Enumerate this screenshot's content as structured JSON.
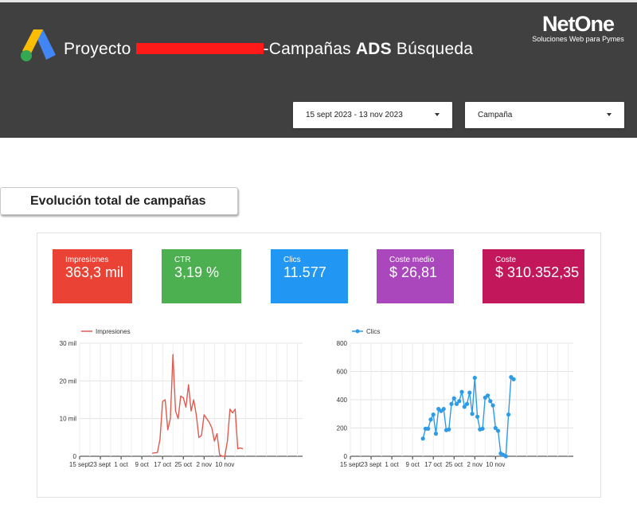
{
  "header": {
    "title_prefix": "Proyecto ",
    "title_suffix_plain": "-Campañas ",
    "title_bold": "ADS",
    "title_tail": " Búsqueda",
    "brand_name": "NetOne",
    "brand_tagline": "Soluciones Web para Pymes",
    "background": "#404040"
  },
  "filters": {
    "date_range": "15 sept 2023 - 13 nov 2023",
    "campaign": "Campaña"
  },
  "section": {
    "title": "Evolución total de campañas"
  },
  "kpis": [
    {
      "label": "Impresiones",
      "value": "363,3 mil",
      "color": "#ea4335"
    },
    {
      "label": "CTR",
      "value": "3,19 %",
      "color": "#4caf50"
    },
    {
      "label": "Clics",
      "value": "11.577",
      "color": "#2196f3"
    },
    {
      "label": "Coste medio",
      "value": "$ 26,81",
      "color": "#ab47bc"
    },
    {
      "label": "Coste",
      "value": "$ 310.352,35",
      "color": "#c2185b"
    }
  ],
  "chart_data": [
    {
      "type": "line",
      "series": [
        {
          "name": "Impresiones",
          "color": "#e05a4f"
        }
      ],
      "x_tick_labels": [
        "15 sept",
        "23 sept",
        "1 oct",
        "9 oct",
        "17 oct",
        "25 oct",
        "2 nov",
        "10 nov"
      ],
      "y_tick_labels": [
        "0",
        "10 mil",
        "20 mil",
        "30 mil"
      ],
      "ylim": [
        0,
        30000
      ],
      "x_days": [
        50,
        51,
        52,
        53,
        54,
        55,
        56,
        57,
        58,
        59,
        60,
        61,
        62,
        63,
        64,
        65,
        66,
        67,
        68,
        69,
        70,
        71,
        72,
        73,
        74,
        75,
        76,
        77,
        78,
        79,
        80,
        81,
        82,
        83,
        84,
        85
      ],
      "values": [
        800,
        900,
        1000,
        4500,
        14500,
        15000,
        7000,
        10000,
        27000,
        12000,
        10000,
        16000,
        15500,
        13000,
        19000,
        12000,
        15000,
        11000,
        5000,
        5500,
        11000,
        10000,
        9000,
        7500,
        4000,
        6000,
        400,
        0,
        0,
        4000,
        12500,
        11500,
        12500,
        2000,
        2200,
        2000
      ],
      "grid": true,
      "legend": "top-left"
    },
    {
      "type": "line",
      "series": [
        {
          "name": "Clics",
          "color": "#2e9be6"
        }
      ],
      "x_tick_labels": [
        "15 sept",
        "23 sept",
        "1 oct",
        "9 oct",
        "17 oct",
        "25 oct",
        "2 nov",
        "10 nov"
      ],
      "y_tick_labels": [
        "0",
        "200",
        "400",
        "600",
        "800"
      ],
      "ylim": [
        0,
        800
      ],
      "x_days": [
        50,
        51,
        52,
        53,
        54,
        55,
        56,
        57,
        58,
        59,
        60,
        61,
        62,
        63,
        64,
        65,
        66,
        67,
        68,
        69,
        70,
        71,
        72,
        73,
        74,
        75,
        76,
        77,
        78,
        79,
        80,
        81,
        82,
        83,
        84,
        85
      ],
      "values": [
        125,
        195,
        195,
        260,
        295,
        160,
        335,
        320,
        335,
        185,
        190,
        370,
        410,
        370,
        390,
        455,
        350,
        370,
        450,
        300,
        555,
        280,
        190,
        195,
        415,
        430,
        390,
        360,
        200,
        180,
        20,
        10,
        0,
        295,
        560,
        545
      ],
      "grid": true,
      "legend": "top-left"
    }
  ]
}
